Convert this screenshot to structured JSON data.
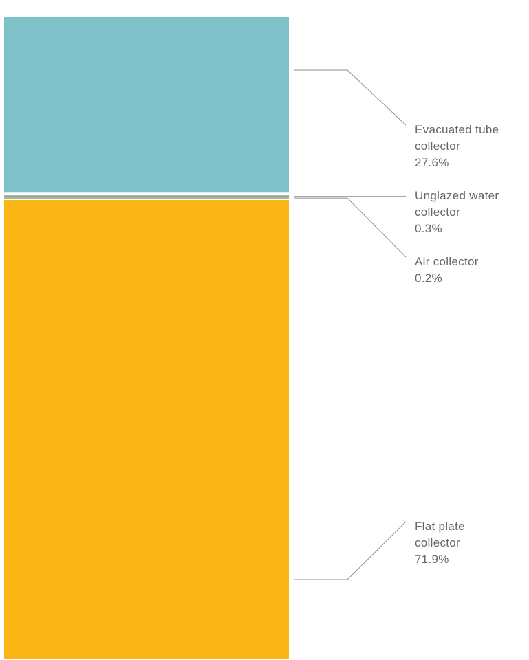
{
  "chart_data": {
    "type": "bar",
    "stacked": true,
    "orientation": "vertical",
    "unit": "%",
    "grid": false,
    "segments": [
      {
        "name": "Evacuated tube collector",
        "label_lines": [
          "Evacuated tube",
          "collector"
        ],
        "value": 27.6,
        "display": "27.6%",
        "color": "#7fc1c9"
      },
      {
        "name": "Unglazed water collector",
        "label_lines": [
          "Unglazed water",
          "collector"
        ],
        "value": 0.3,
        "display": "0.3%",
        "color": "#8aa39a"
      },
      {
        "name": "Air collector",
        "label_lines": [
          "Air collector"
        ],
        "value": 0.2,
        "display": "0.2%",
        "color": "#b6b28a"
      },
      {
        "name": "Flat plate collector",
        "label_lines": [
          "Flat plate",
          "collector"
        ],
        "value": 71.9,
        "display": "71.9%",
        "color": "#fbb514"
      }
    ]
  }
}
